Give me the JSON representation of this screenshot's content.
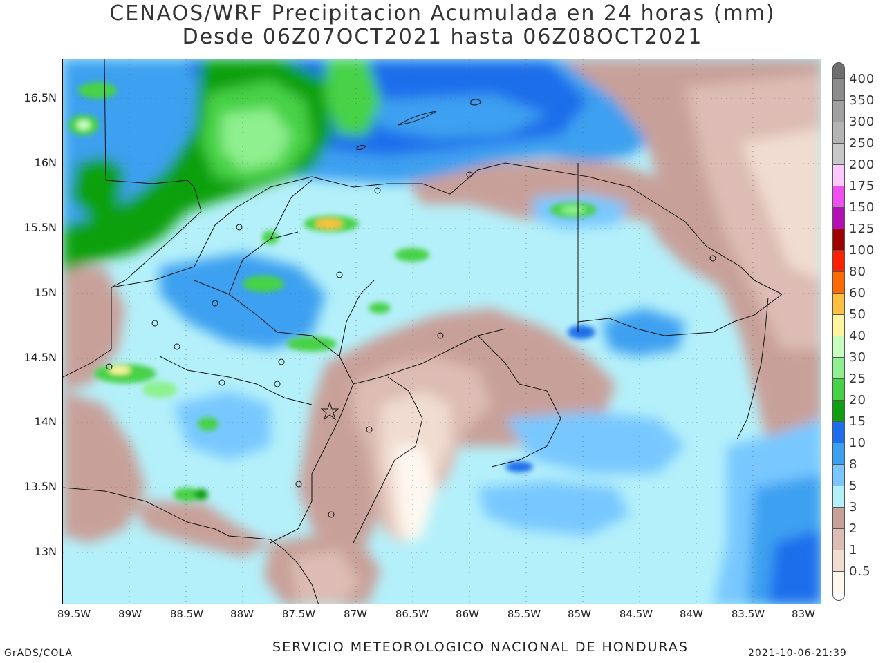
{
  "title": {
    "line1": "CENAOS/WRF Precipitacion Acumulada en 24 horas (mm)",
    "line2": "Desde 06Z07OCT2021 hasta 06Z08OCT2021"
  },
  "axes": {
    "lat_labels": [
      "16.5N",
      "16N",
      "15.5N",
      "15N",
      "14.5N",
      "14N",
      "13.5N",
      "13N"
    ],
    "lon_labels": [
      "89.5W",
      "89W",
      "88.5W",
      "88W",
      "87.5W",
      "87W",
      "86.5W",
      "86W",
      "85.5W",
      "85W",
      "84.5W",
      "84W",
      "83.5W",
      "83W"
    ]
  },
  "legend": {
    "labels": [
      "400",
      "350",
      "300",
      "250",
      "200",
      "175",
      "150",
      "125",
      "100",
      "80",
      "60",
      "50",
      "40",
      "30",
      "25",
      "20",
      "15",
      "10",
      "8",
      "5",
      "3",
      "2",
      "1",
      "0.5"
    ],
    "colors": [
      "#8c8c8c",
      "#a0a0a0",
      "#b4b4b4",
      "#c8c8c8",
      "#ffc8ff",
      "#f050f0",
      "#b40fb4",
      "#a00000",
      "#ff2000",
      "#ff6a00",
      "#ffbf40",
      "#fff5a0",
      "#c8ffbe",
      "#8ef08e",
      "#46d246",
      "#0fa00f",
      "#1e6eeb",
      "#3ca0f0",
      "#78c8ff",
      "#b4f0fa",
      "#c8a09a",
      "#dcbcb4",
      "#f0dcd0",
      "#fff8f0"
    ],
    "top_color": "#6e6e6e",
    "bottom_color": "#ffffff"
  },
  "footer": {
    "center": "SERVICIO METEOROLOGICO NACIONAL DE HONDURAS",
    "left": "GrADS/COLA",
    "right": "2021-10-06-21:39"
  },
  "colors": {
    "sea_blue": "#1e6eeb",
    "mid_blue": "#3ca0f0",
    "light_blue": "#b4f0fa",
    "pale_blue": "#78c8ff",
    "brown": "#c8a09a",
    "light_brown": "#dcbcb4",
    "pale_brown": "#f0dcd0",
    "green": "#0fa00f",
    "light_green": "#8ef08e",
    "mid_green": "#46d246",
    "orange": "#ffbf40"
  }
}
